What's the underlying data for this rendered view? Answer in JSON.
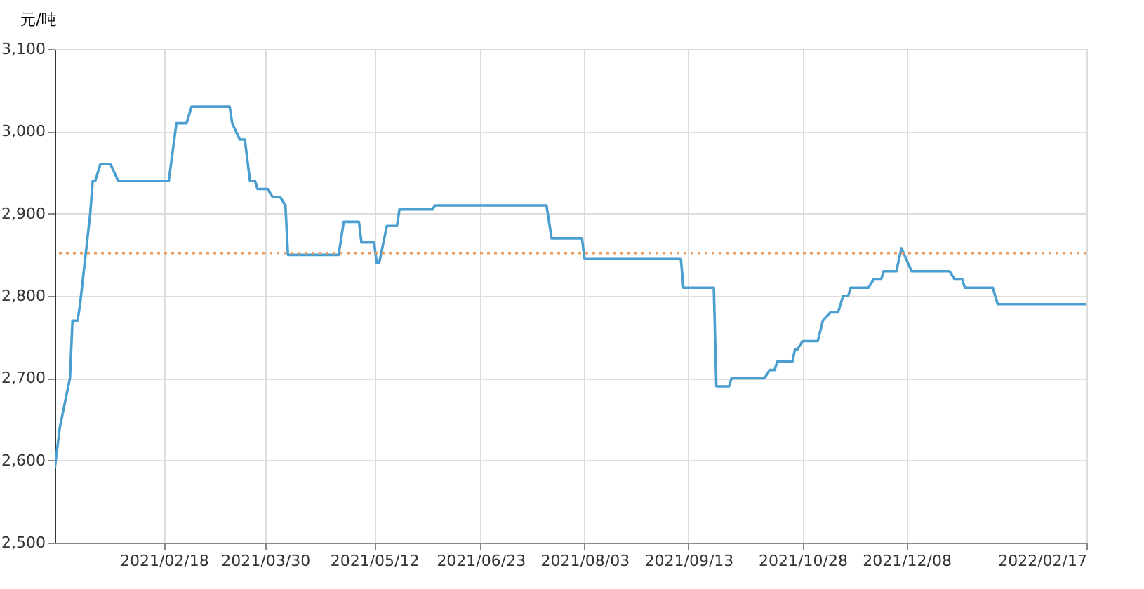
{
  "chart_data": {
    "type": "line",
    "ylabel": "元/吨",
    "series": [
      {
        "color": "#4a9fd0",
        "x": [
          "2021-01-06",
          "2021-01-08",
          "2021-01-12",
          "2021-01-13",
          "2021-01-15",
          "2021-01-16",
          "2021-01-20",
          "2021-01-21",
          "2021-01-22",
          "2021-01-24",
          "2021-01-28",
          "2021-01-31",
          "2021-02-20",
          "2021-02-23",
          "2021-02-27",
          "2021-03-01",
          "2021-03-16",
          "2021-03-17",
          "2021-03-20",
          "2021-03-22",
          "2021-03-24",
          "2021-03-26",
          "2021-03-27",
          "2021-03-31",
          "2021-04-02",
          "2021-04-05",
          "2021-04-07",
          "2021-04-08",
          "2021-04-28",
          "2021-04-30",
          "2021-05-06",
          "2021-05-07",
          "2021-05-12",
          "2021-05-13",
          "2021-05-14",
          "2021-05-17",
          "2021-05-21",
          "2021-05-22",
          "2021-06-04",
          "2021-06-05",
          "2021-07-19",
          "2021-07-21",
          "2021-08-02",
          "2021-08-03",
          "2021-09-10",
          "2021-09-11",
          "2021-09-23",
          "2021-09-24",
          "2021-09-29",
          "2021-09-30",
          "2021-10-13",
          "2021-10-15",
          "2021-10-17",
          "2021-10-18",
          "2021-10-24",
          "2021-10-25",
          "2021-10-26",
          "2021-10-28",
          "2021-11-03",
          "2021-11-05",
          "2021-11-08",
          "2021-11-11",
          "2021-11-13",
          "2021-11-15",
          "2021-11-16",
          "2021-11-23",
          "2021-11-25",
          "2021-11-28",
          "2021-11-29",
          "2021-12-04",
          "2021-12-06",
          "2021-12-10",
          "2021-12-25",
          "2021-12-27",
          "2021-12-30",
          "2021-12-31",
          "2022-01-11",
          "2022-01-13",
          "2022-02-17"
        ],
        "values": [
          2590,
          2640,
          2700,
          2770,
          2770,
          2790,
          2900,
          2940,
          2940,
          2960,
          2960,
          2940,
          2940,
          3010,
          3010,
          3030,
          3030,
          3010,
          2990,
          2990,
          2940,
          2940,
          2930,
          2930,
          2920,
          2920,
          2910,
          2850,
          2850,
          2890,
          2890,
          2865,
          2865,
          2840,
          2840,
          2885,
          2885,
          2905,
          2905,
          2910,
          2910,
          2870,
          2870,
          2845,
          2845,
          2810,
          2810,
          2690,
          2690,
          2700,
          2700,
          2710,
          2710,
          2720,
          2720,
          2735,
          2735,
          2745,
          2745,
          2770,
          2780,
          2780,
          2800,
          2800,
          2810,
          2810,
          2820,
          2820,
          2830,
          2830,
          2858,
          2830,
          2830,
          2820,
          2820,
          2810,
          2810,
          2790,
          2790
        ]
      }
    ],
    "ref_lines": [
      {
        "axis": "y",
        "value": 2852,
        "color": "#ee9a5a",
        "line_style": "dotted"
      }
    ],
    "xlim": [
      "2021-01-06",
      "2022-02-17"
    ],
    "xticks": [
      {
        "value": "2021-02-18",
        "label": "2021/02/18"
      },
      {
        "value": "2021-03-30",
        "label": "2021/03/30"
      },
      {
        "value": "2021-05-12",
        "label": "2021/05/12"
      },
      {
        "value": "2021-06-23",
        "label": "2021/06/23"
      },
      {
        "value": "2021-08-03",
        "label": "2021/08/03"
      },
      {
        "value": "2021-09-13",
        "label": "2021/09/13"
      },
      {
        "value": "2021-10-28",
        "label": "2021/10/28"
      },
      {
        "value": "2021-12-08",
        "label": "2021/12/08"
      },
      {
        "value": "2022-02-17",
        "label": "2022/02/17"
      }
    ],
    "ylim": [
      2500,
      3100
    ],
    "yticks": [
      {
        "value": 2500,
        "label": "2,500"
      },
      {
        "value": 2600,
        "label": "2,600"
      },
      {
        "value": 2700,
        "label": "2,700"
      },
      {
        "value": 2800,
        "label": "2,800"
      },
      {
        "value": 2900,
        "label": "2,900"
      },
      {
        "value": 3000,
        "label": "3,000"
      },
      {
        "value": 3100,
        "label": "3,100"
      }
    ],
    "grid": true,
    "marker": "none",
    "line_style": "solid"
  }
}
